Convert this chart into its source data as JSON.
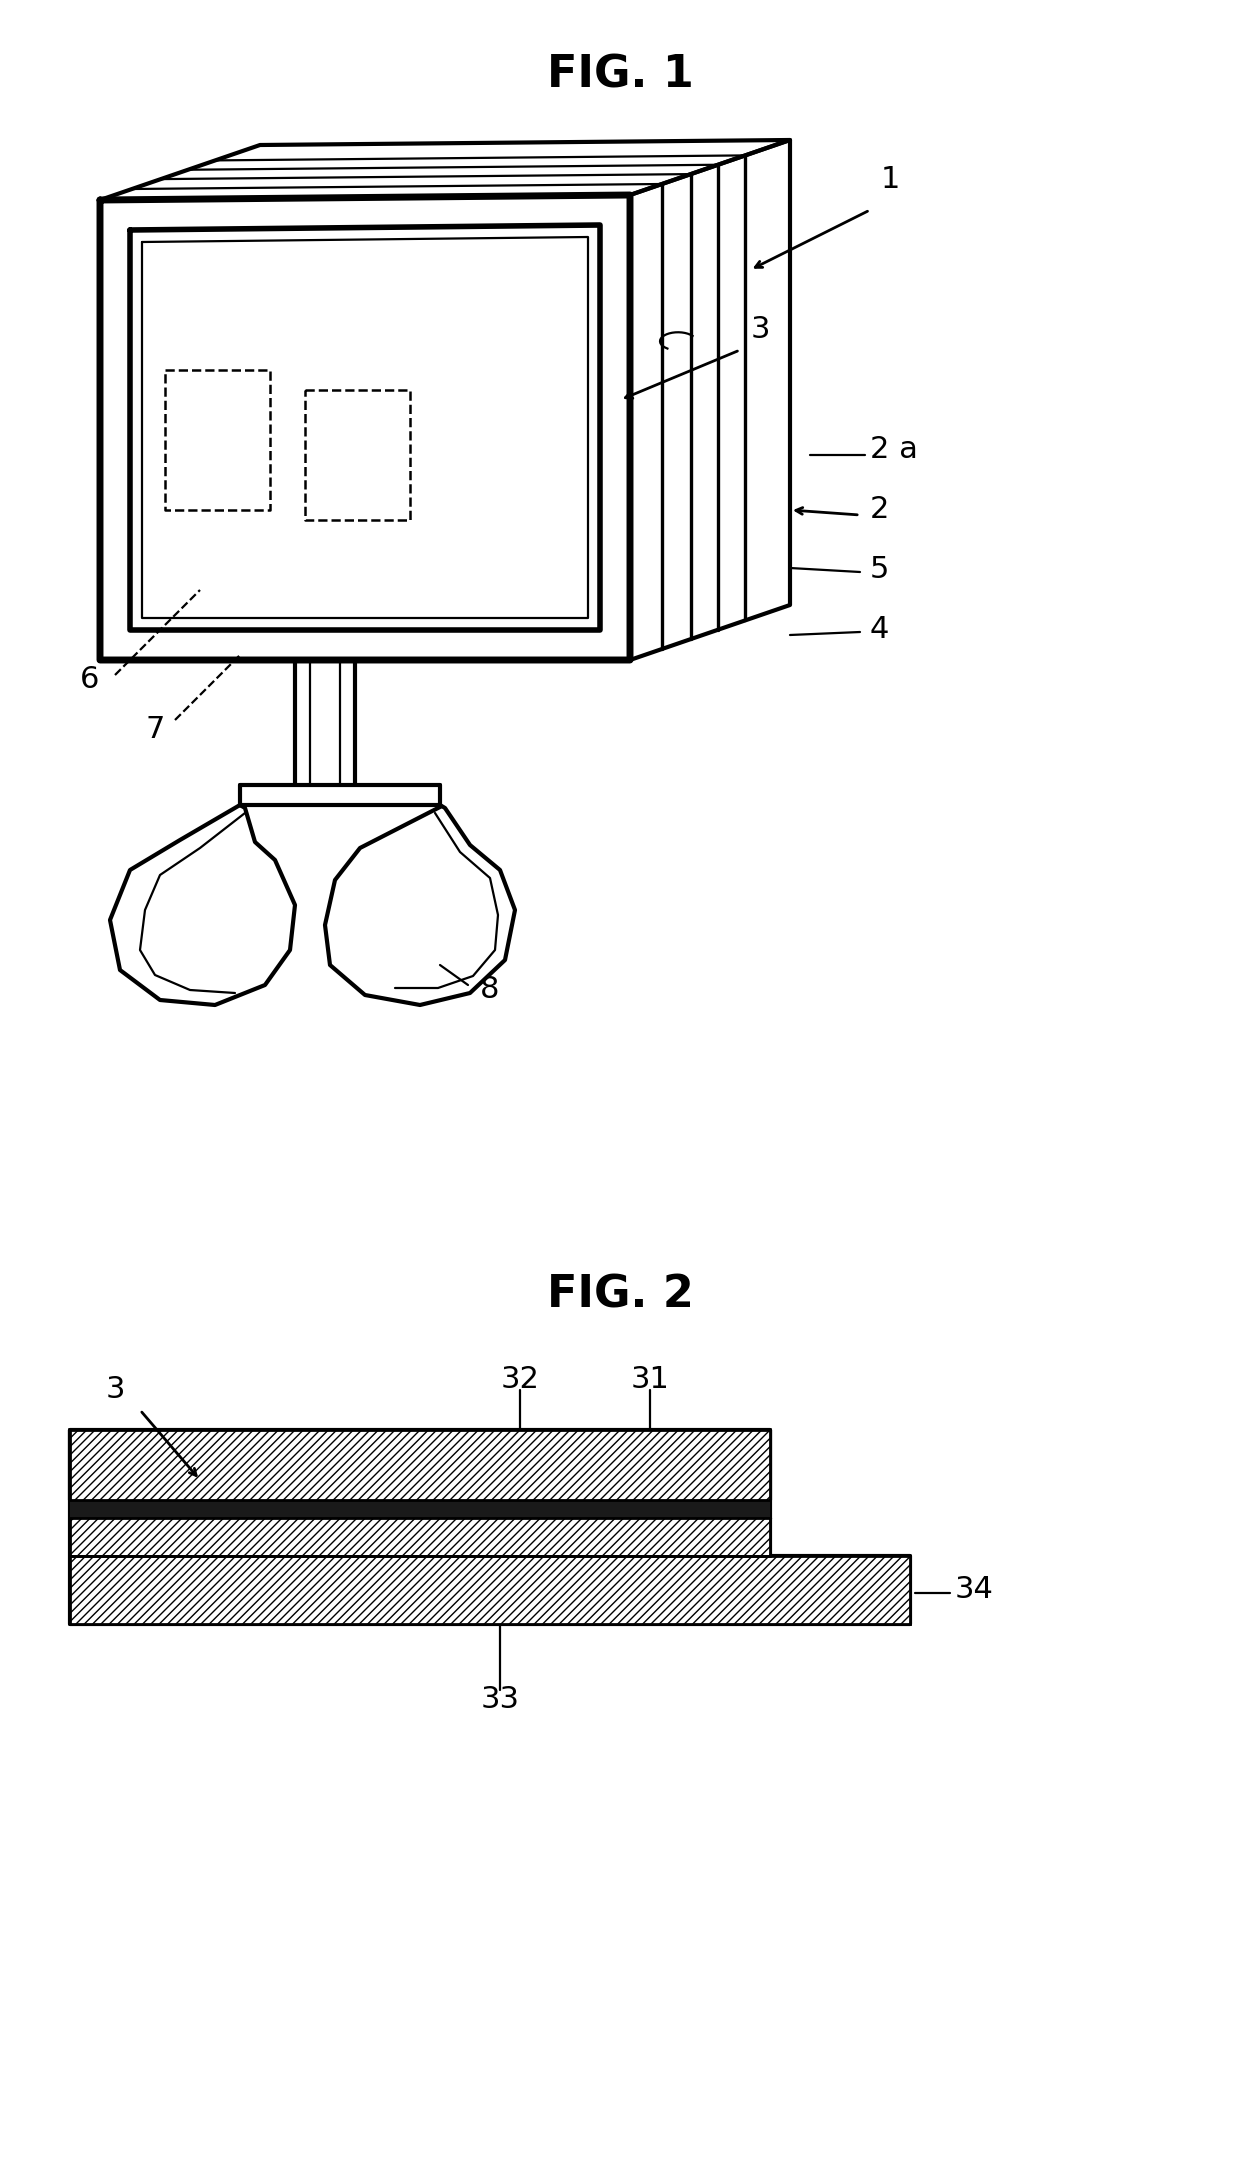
{
  "bg_color": "#ffffff",
  "fig1_title": "FIG. 1",
  "fig2_title": "FIG. 2",
  "title_fontsize": 32,
  "label_fontsize": 22,
  "line_color": "#000000",
  "line_width": 2.0
}
